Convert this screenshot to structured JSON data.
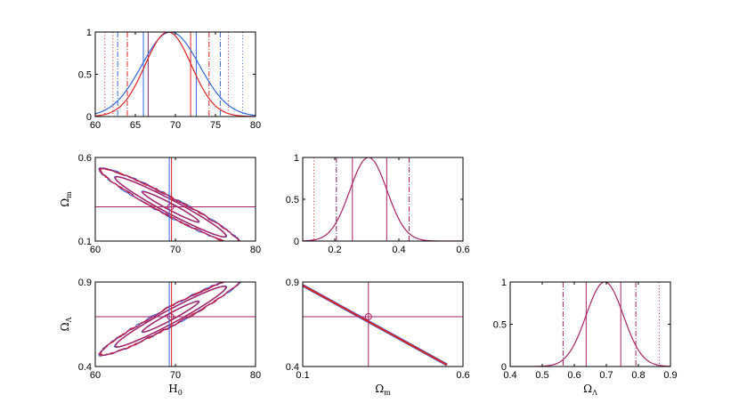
{
  "chart_data": [
    {
      "id": "h0-marginal",
      "type": "line",
      "xlim": [
        60,
        80
      ],
      "ylim": [
        0,
        1
      ],
      "xticks": [
        "60",
        "65",
        "70",
        "75",
        "80"
      ],
      "yticks": [
        "0",
        "0.5",
        "1"
      ],
      "xlabel": "",
      "ylabel": "",
      "series": [
        {
          "color": "#3366dd",
          "kind": "gaussian",
          "mean": 69.4,
          "sigma": 3.6
        },
        {
          "color": "#dd2222",
          "kind": "gaussian",
          "mean": 69.1,
          "sigma": 2.9
        }
      ],
      "vlines": [
        {
          "x": 66.0,
          "color": "#3366dd",
          "style": "solid"
        },
        {
          "x": 72.6,
          "color": "#3366dd",
          "style": "solid"
        },
        {
          "x": 66.6,
          "color": "#882266",
          "style": "solid"
        },
        {
          "x": 71.9,
          "color": "#dd2222",
          "style": "solid"
        },
        {
          "x": 62.8,
          "color": "#3366dd",
          "style": "dashdot"
        },
        {
          "x": 75.6,
          "color": "#3366dd",
          "style": "dashdot"
        },
        {
          "x": 64.0,
          "color": "#dd2222",
          "style": "dashdot"
        },
        {
          "x": 74.2,
          "color": "#dd2222",
          "style": "dashdot"
        },
        {
          "x": 61.2,
          "color": "#dd2222",
          "style": "dotted"
        },
        {
          "x": 62.2,
          "color": "#dd2222",
          "style": "dotted"
        },
        {
          "x": 76.6,
          "color": "#dd2222",
          "style": "dotted"
        },
        {
          "x": 78.4,
          "color": "#3366dd",
          "style": "dotted"
        }
      ]
    },
    {
      "id": "h0-om",
      "type": "contour",
      "xlim": [
        60,
        80
      ],
      "ylim": [
        0.1,
        0.6
      ],
      "xticks": [
        "60",
        "70",
        "80"
      ],
      "yticks": [
        "0.1",
        "0.6"
      ],
      "xlabel": "",
      "ylabel": "Ω",
      "ylabel_sub": "m",
      "center": [
        69.4,
        0.305
      ],
      "slope": -0.0255,
      "contours": [
        {
          "level": "1 sigma",
          "x_extent": 3.5,
          "width": 0.022
        },
        {
          "level": "2 sigma",
          "x_extent": 6.9,
          "width": 0.045
        },
        {
          "level": "3 sigma",
          "x_extent": 8.8,
          "width": 0.06
        }
      ],
      "crosshair": {
        "x": 69.4,
        "y": 0.305
      },
      "colors": {
        "blue": "#3366dd",
        "red": "#dd2222",
        "purple": "#aa2266"
      }
    },
    {
      "id": "om-marginal",
      "type": "line",
      "xlim": [
        0.1,
        0.6
      ],
      "ylim": [
        0,
        1
      ],
      "xticks": [
        "0.2",
        "0.4",
        "0.6"
      ],
      "yticks": [
        "0",
        "0.5",
        "1"
      ],
      "xlabel": "",
      "ylabel": "",
      "series": [
        {
          "color": "#aa2266",
          "kind": "gaussian",
          "mean": 0.305,
          "sigma": 0.058
        }
      ],
      "vlines": [
        {
          "x": 0.255,
          "color": "#aa2266",
          "style": "solid"
        },
        {
          "x": 0.362,
          "color": "#aa2266",
          "style": "solid"
        },
        {
          "x": 0.205,
          "color": "#882266",
          "style": "dashdot"
        },
        {
          "x": 0.432,
          "color": "#aa2266",
          "style": "dashdot"
        },
        {
          "x": 0.135,
          "color": "#dd2222",
          "style": "dotted"
        }
      ]
    },
    {
      "id": "h0-ol",
      "type": "contour",
      "xlim": [
        60,
        80
      ],
      "ylim": [
        0.4,
        0.9
      ],
      "xticks": [
        "60",
        "70",
        "80"
      ],
      "yticks": [
        "0.4",
        "0.9"
      ],
      "xlabel": "H",
      "xlabel_sub": "0",
      "ylabel": "Ω",
      "ylabel_sub": "Λ",
      "center": [
        69.4,
        0.695
      ],
      "slope": 0.0255,
      "contours": [
        {
          "level": "1 sigma",
          "x_extent": 3.5,
          "width": 0.022
        },
        {
          "level": "2 sigma",
          "x_extent": 6.9,
          "width": 0.045
        },
        {
          "level": "3 sigma",
          "x_extent": 8.8,
          "width": 0.06
        }
      ],
      "crosshair": {
        "x": 69.4,
        "y": 0.695
      },
      "colors": {
        "blue": "#3366dd",
        "red": "#dd2222",
        "purple": "#aa2266"
      }
    },
    {
      "id": "om-ol",
      "type": "scatter",
      "xlim": [
        0.1,
        0.6
      ],
      "ylim": [
        0.4,
        0.9
      ],
      "xticks": [
        "0.1",
        "0.6"
      ],
      "yticks": [
        "0.4",
        "0.9"
      ],
      "xlabel": "Ω",
      "xlabel_sub": "m",
      "ylabel": "",
      "line_segment": {
        "x": [
          0.1,
          0.55
        ],
        "y": [
          0.88,
          0.41
        ]
      },
      "crosshair": {
        "x": 0.305,
        "y": 0.695
      },
      "colors": {
        "blue": "#3366dd",
        "red": "#dd2222",
        "purple": "#aa2266"
      }
    },
    {
      "id": "ol-marginal",
      "type": "line",
      "xlim": [
        0.4,
        0.9
      ],
      "ylim": [
        0,
        1
      ],
      "xticks": [
        "0.4",
        "0.5",
        "0.6",
        "0.7",
        "0.8",
        "0.9"
      ],
      "yticks": [
        "0",
        "0.5",
        "1"
      ],
      "xlabel": "Ω",
      "xlabel_sub": "Λ",
      "ylabel": "",
      "series": [
        {
          "color": "#aa2266",
          "kind": "gaussian",
          "mean": 0.695,
          "sigma": 0.058
        }
      ],
      "vlines": [
        {
          "x": 0.637,
          "color": "#aa2266",
          "style": "solid"
        },
        {
          "x": 0.745,
          "color": "#aa2266",
          "style": "solid"
        },
        {
          "x": 0.565,
          "color": "#aa2266",
          "style": "dashdot"
        },
        {
          "x": 0.792,
          "color": "#aa2266",
          "style": "dashdot"
        },
        {
          "x": 0.865,
          "color": "#aa2266",
          "style": "dotted"
        }
      ]
    }
  ]
}
